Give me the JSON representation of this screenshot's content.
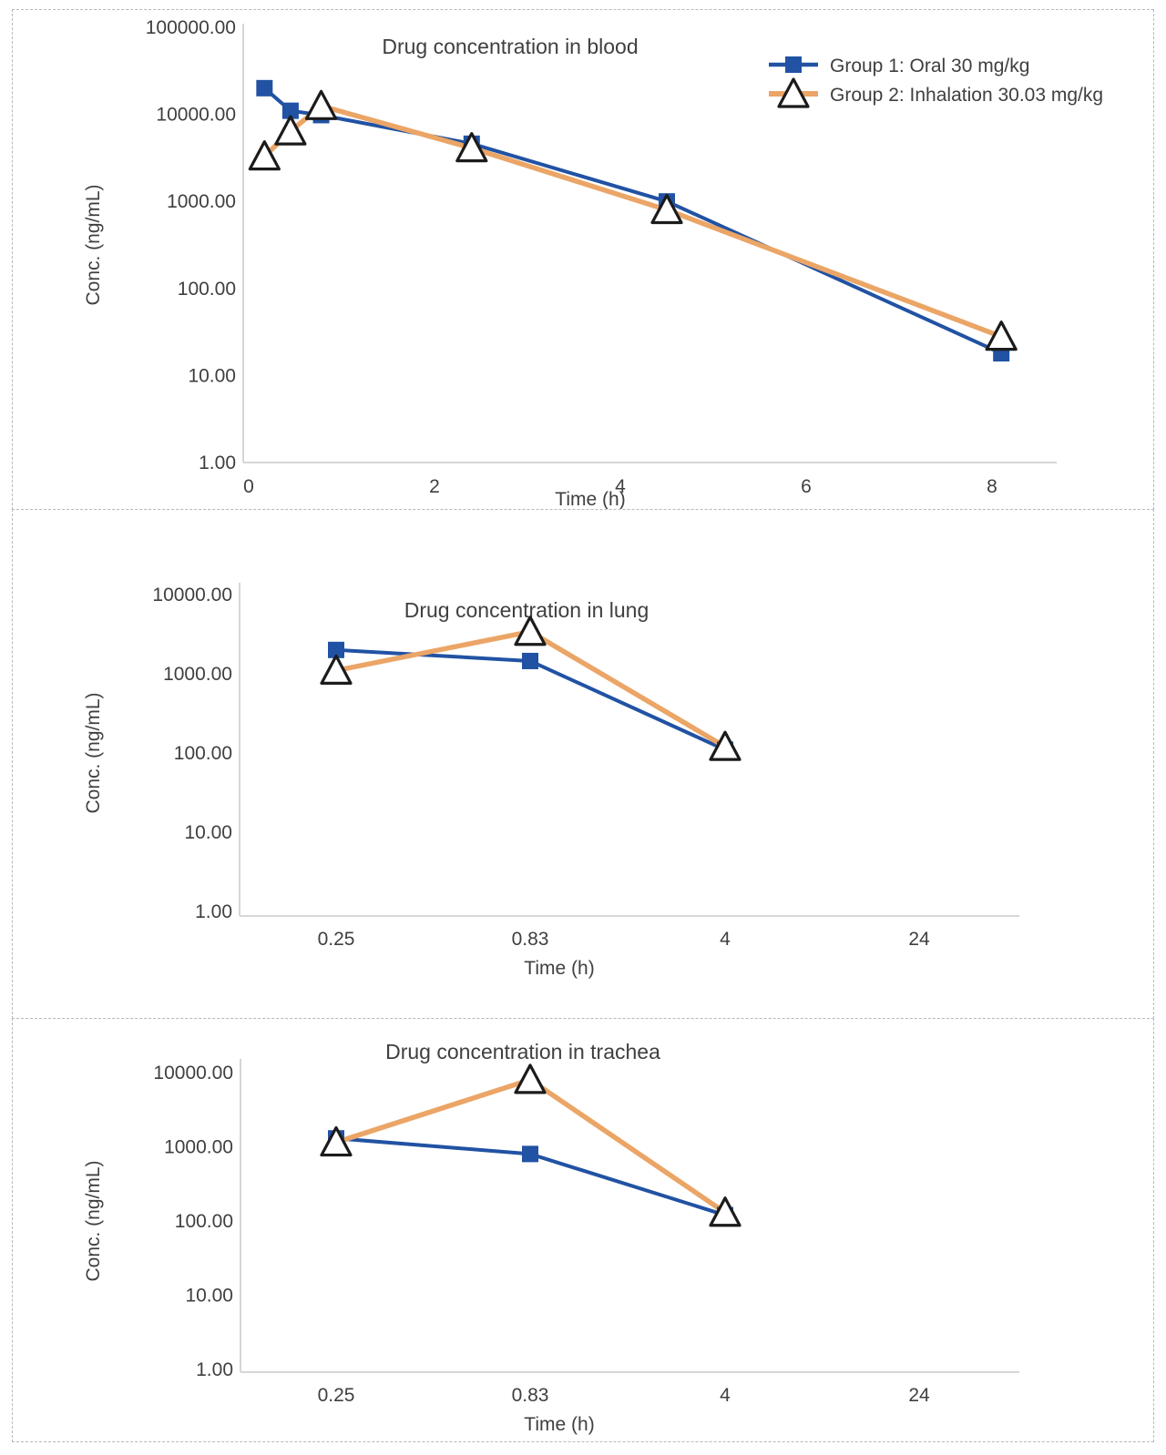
{
  "colors": {
    "group1_blue": "#2152a3",
    "group2_orange": "#eba566",
    "marker_stroke": "#1b1b1b",
    "axis_line": "#d6d6d6",
    "text": "#3f3f3f"
  },
  "legend": {
    "items": [
      {
        "label": "Group 1: Oral 30 mg/kg",
        "marker": "square",
        "color": "#2152a3"
      },
      {
        "label": "Group 2: Inhalation 30.03 mg/kg",
        "marker": "triangle",
        "color": "#eba566"
      }
    ]
  },
  "chart_data": [
    {
      "type": "line",
      "title": "Drug concentration in blood",
      "xlabel": "Time (h)",
      "ylabel": "Conc. (ng/mL)",
      "y_scale": "log10",
      "ylim": [
        1,
        100000
      ],
      "y_ticks": [
        "100000.00",
        "10000.00",
        "1000.00",
        "100.00",
        "10.00",
        "1.00"
      ],
      "y_tick_values": [
        100000,
        10000,
        1000,
        100,
        10,
        1
      ],
      "x_axis_type": "linear",
      "x_ticks": [
        "0",
        "2",
        "4",
        "6",
        "8"
      ],
      "x_tick_values": [
        0,
        2,
        4,
        6,
        8
      ],
      "xlim": [
        0,
        8.7
      ],
      "grid": false,
      "legend_position": "top-right",
      "series": [
        {
          "name": "Group 1: Oral 30 mg/kg",
          "marker": "square",
          "color": "#2152a3",
          "points": [
            {
              "x": 0.17,
              "y": 20000
            },
            {
              "x": 0.45,
              "y": 11000
            },
            {
              "x": 0.78,
              "y": 9800
            },
            {
              "x": 2.4,
              "y": 4600
            },
            {
              "x": 4.5,
              "y": 1000
            },
            {
              "x": 8.1,
              "y": 18
            }
          ]
        },
        {
          "name": "Group 2: Inhalation 30.03 mg/kg",
          "marker": "triangle",
          "color": "#eba566",
          "points": [
            {
              "x": 0.17,
              "y": 3300
            },
            {
              "x": 0.45,
              "y": 6400
            },
            {
              "x": 0.78,
              "y": 12500
            },
            {
              "x": 2.4,
              "y": 4100
            },
            {
              "x": 4.5,
              "y": 800
            },
            {
              "x": 8.1,
              "y": 28
            }
          ]
        }
      ]
    },
    {
      "type": "line",
      "title": "Drug concentration in lung",
      "xlabel": "Time (h)",
      "ylabel": "Conc. (ng/mL)",
      "y_scale": "log10",
      "ylim": [
        1,
        10000
      ],
      "y_ticks": [
        "10000.00",
        "1000.00",
        "100.00",
        "10.00",
        "1.00"
      ],
      "y_tick_values": [
        10000,
        1000,
        100,
        10,
        1
      ],
      "x_axis_type": "category",
      "categories": [
        "0.25",
        "0.83",
        "4",
        "24"
      ],
      "grid": false,
      "legend_position": "none",
      "series": [
        {
          "name": "Group 1: Oral 30 mg/kg",
          "marker": "square",
          "color": "#2152a3",
          "points": [
            {
              "x": "0.25",
              "y": 2000
            },
            {
              "x": "0.83",
              "y": 1450
            },
            {
              "x": "4",
              "y": 110
            }
          ]
        },
        {
          "name": "Group 2: Inhalation 30.03 mg/kg",
          "marker": "triangle",
          "color": "#eba566",
          "points": [
            {
              "x": "0.25",
              "y": 1100
            },
            {
              "x": "0.83",
              "y": 3400
            },
            {
              "x": "4",
              "y": 120
            }
          ]
        }
      ]
    },
    {
      "type": "line",
      "title": "Drug concentration in trachea",
      "xlabel": "Time (h)",
      "ylabel": "Conc. (ng/mL)",
      "y_scale": "log10",
      "ylim": [
        1,
        10000
      ],
      "y_ticks": [
        "10000.00",
        "1000.00",
        "100.00",
        "10.00",
        "1.00"
      ],
      "y_tick_values": [
        10000,
        1000,
        100,
        10,
        1
      ],
      "x_axis_type": "category",
      "categories": [
        "0.25",
        "0.83",
        "4",
        "24"
      ],
      "grid": false,
      "legend_position": "none",
      "series": [
        {
          "name": "Group 1: Oral 30 mg/kg",
          "marker": "square",
          "color": "#2152a3",
          "points": [
            {
              "x": "0.25",
              "y": 1300
            },
            {
              "x": "0.83",
              "y": 800
            },
            {
              "x": "4",
              "y": 120
            }
          ]
        },
        {
          "name": "Group 2: Inhalation 30.03 mg/kg",
          "marker": "triangle",
          "color": "#eba566",
          "points": [
            {
              "x": "0.25",
              "y": 1150
            },
            {
              "x": "0.83",
              "y": 8000
            },
            {
              "x": "4",
              "y": 130
            }
          ]
        }
      ]
    }
  ]
}
